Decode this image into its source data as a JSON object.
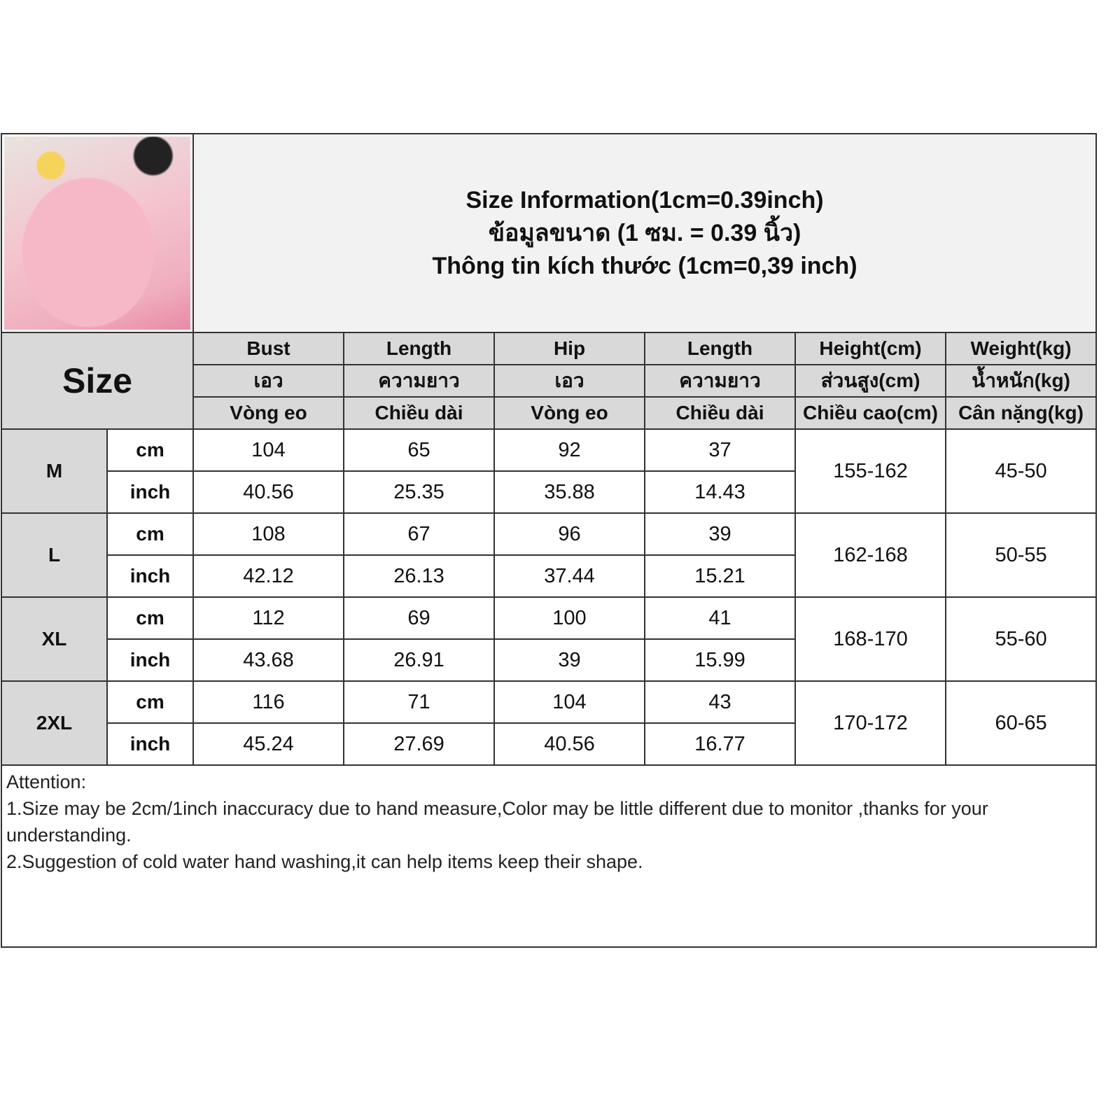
{
  "title_lines": [
    "Size Information(1cm=0.39inch)",
    "ข้อมูลขนาด (1 ซม. = 0.39 นิ้ว)",
    "Thông tin kích thước (1cm=0,39 inch)"
  ],
  "size_label": "Size",
  "columns": [
    [
      "Bust",
      "เอว",
      "Vòng eo"
    ],
    [
      "Length",
      "ความยาว",
      "Chiều dài"
    ],
    [
      "Hip",
      "เอว",
      "Vòng eo"
    ],
    [
      "Length",
      "ความยาว",
      "Chiều dài"
    ],
    [
      "Height(cm)",
      "ส่วนสูง(cm)",
      "Chiều cao(cm)"
    ],
    [
      "Weight(kg)",
      "น้ำหนัก(kg)",
      "Cân nặng(kg)"
    ]
  ],
  "units": [
    "cm",
    "inch"
  ],
  "rows": [
    {
      "size": "M",
      "cm": [
        "104",
        "65",
        "92",
        "37"
      ],
      "inch": [
        "40.56",
        "25.35",
        "35.88",
        "14.43"
      ],
      "height": "155-162",
      "weight": "45-50"
    },
    {
      "size": "L",
      "cm": [
        "108",
        "67",
        "96",
        "39"
      ],
      "inch": [
        "42.12",
        "26.13",
        "37.44",
        "15.21"
      ],
      "height": "162-168",
      "weight": "50-55"
    },
    {
      "size": "XL",
      "cm": [
        "112",
        "69",
        "100",
        "41"
      ],
      "inch": [
        "43.68",
        "26.91",
        "39",
        "15.99"
      ],
      "height": "168-170",
      "weight": "55-60"
    },
    {
      "size": "2XL",
      "cm": [
        "116",
        "71",
        "104",
        "43"
      ],
      "inch": [
        "45.24",
        "27.69",
        "40.56",
        "16.77"
      ],
      "height": "170-172",
      "weight": "60-65"
    }
  ],
  "notes": [
    "Attention:",
    "1.Size may be 2cm/1inch inaccuracy due to hand measure,Color may be little different due to monitor ,thanks for your understanding.",
    "2.Suggestion of cold water hand washing,it can help items keep their shape."
  ],
  "colors": {
    "header_bg": "#d9d9d9",
    "title_bg": "#f2f2f2",
    "border": "#333333"
  }
}
